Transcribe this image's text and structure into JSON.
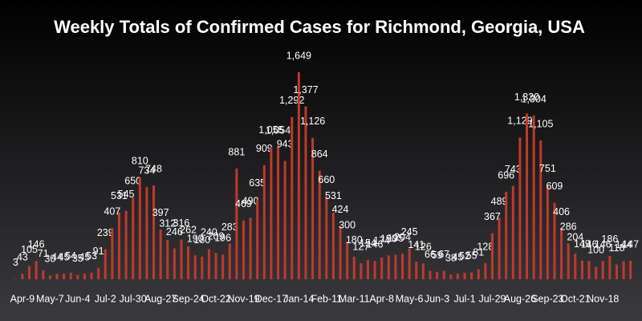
{
  "chart_data": {
    "type": "bar",
    "title": "Weekly Totals of Confirmed Cases for Richmond, Georgia, USA",
    "categories": [
      null,
      "Apr-9",
      null,
      null,
      null,
      "May-7",
      null,
      null,
      null,
      "Jun-4",
      null,
      null,
      null,
      "Jul-2",
      null,
      null,
      null,
      "Jul-30",
      null,
      null,
      null,
      "Aug-27",
      null,
      null,
      null,
      "Sep-24",
      null,
      null,
      null,
      "Oct-22",
      null,
      null,
      null,
      "Nov-19",
      null,
      null,
      null,
      "Dec-17",
      null,
      null,
      null,
      "Jan-14",
      null,
      null,
      null,
      "Feb-11",
      null,
      null,
      null,
      "Mar-11",
      null,
      null,
      null,
      "Apr-8",
      null,
      null,
      null,
      "May-6",
      null,
      null,
      null,
      "Jun-3",
      null,
      null,
      null,
      "Jul-1",
      null,
      null,
      null,
      "Jul-29",
      null,
      null,
      null,
      "Aug-26",
      null,
      null,
      null,
      "Sep-23",
      null,
      null,
      null,
      "Oct-21",
      null,
      null,
      null,
      "Nov-18",
      null,
      null,
      null,
      null
    ],
    "values": [
      3,
      43,
      105,
      146,
      71,
      30,
      44,
      45,
      54,
      35,
      45,
      53,
      91,
      239,
      407,
      531,
      545,
      650,
      810,
      734,
      748,
      397,
      312,
      246,
      316,
      262,
      190,
      180,
      240,
      209,
      196,
      283,
      881,
      469,
      490,
      635,
      909,
      1055,
      1054,
      943,
      1292,
      1649,
      1377,
      1126,
      864,
      660,
      531,
      424,
      300,
      180,
      127,
      154,
      146,
      174,
      190,
      195,
      204,
      245,
      141,
      126,
      66,
      59,
      67,
      38,
      45,
      52,
      55,
      81,
      128,
      367,
      489,
      696,
      743,
      1129,
      1320,
      1304,
      1105,
      751,
      609,
      406,
      286,
      204,
      149,
      146,
      100,
      146,
      186,
      118,
      144,
      147
    ],
    "value_labels": [
      "3",
      "43",
      "105",
      "146",
      "71",
      "30",
      "44",
      "45",
      "54",
      "35",
      "45",
      "53",
      "91",
      "239",
      "407",
      "531",
      "545",
      "650",
      "810",
      "734",
      "748",
      "397",
      "312",
      "246",
      "316",
      "262",
      "190",
      "180",
      "240",
      "209",
      "196",
      "283",
      "881",
      "469",
      "490",
      "635",
      "909",
      "1,055",
      "1,054",
      "943",
      "1,292",
      "1,649",
      "1,377",
      "1,126",
      "864",
      "660",
      "531",
      "424",
      "300",
      "180",
      "127",
      "154",
      "146",
      "174",
      "190",
      "195",
      "204",
      "245",
      "141",
      "126",
      "66",
      "59",
      "67",
      "38",
      "45",
      "52",
      "55",
      "81",
      "128",
      "367",
      "489",
      "696",
      "743",
      "1,129",
      "1,320",
      "1,304",
      "1,105",
      "751",
      "609",
      "406",
      "286",
      "204",
      "149",
      "146",
      "100",
      "146",
      "186",
      "118",
      "144",
      "147"
    ],
    "color": "#c0392b",
    "ylim": [
      0,
      1700
    ]
  }
}
